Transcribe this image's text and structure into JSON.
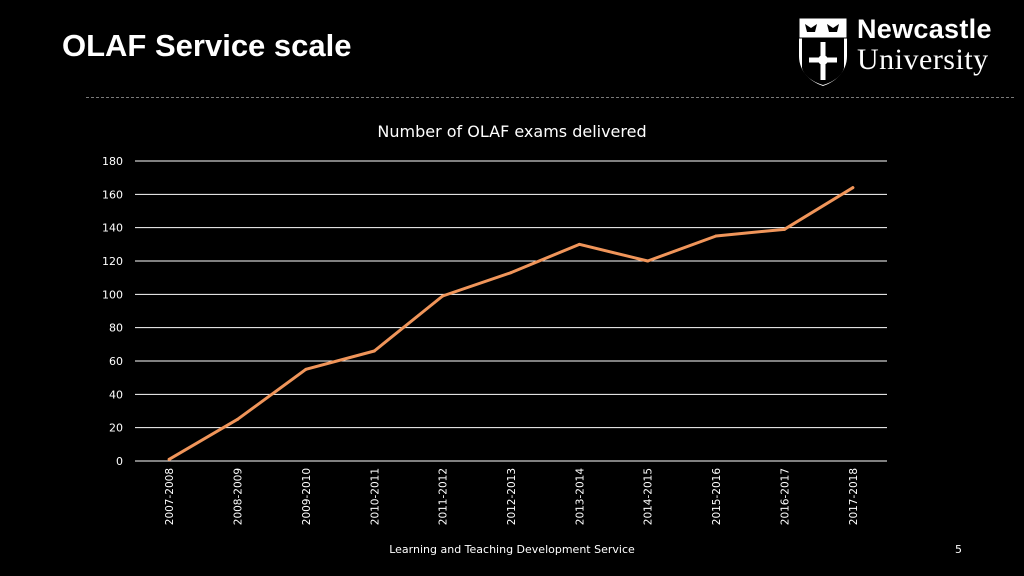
{
  "slide": {
    "title": "OLAF Service scale",
    "footer": "Learning and Teaching Development Service",
    "page_number": "5"
  },
  "logo": {
    "line1": "Newcastle",
    "line2": "University"
  },
  "colors": {
    "background": "#000000",
    "line": "#F0955A",
    "grid": "#FFFFFF"
  },
  "chart_data": {
    "type": "line",
    "title": "Number of OLAF exams delivered",
    "categories": [
      "2007-2008",
      "2008-2009",
      "2009-2010",
      "2010-2011",
      "2011-2012",
      "2012-2013",
      "2013-2014",
      "2014-2015",
      "2015-2016",
      "2016-2017",
      "2017-2018"
    ],
    "series": [
      {
        "values": [
          1,
          25,
          55,
          66,
          99,
          113,
          130,
          120,
          135,
          139,
          164
        ]
      }
    ],
    "ylim": [
      0,
      180
    ],
    "yticks": [
      0,
      20,
      40,
      60,
      80,
      100,
      120,
      140,
      160,
      180
    ],
    "grid": true,
    "xlabel": "",
    "ylabel": ""
  }
}
